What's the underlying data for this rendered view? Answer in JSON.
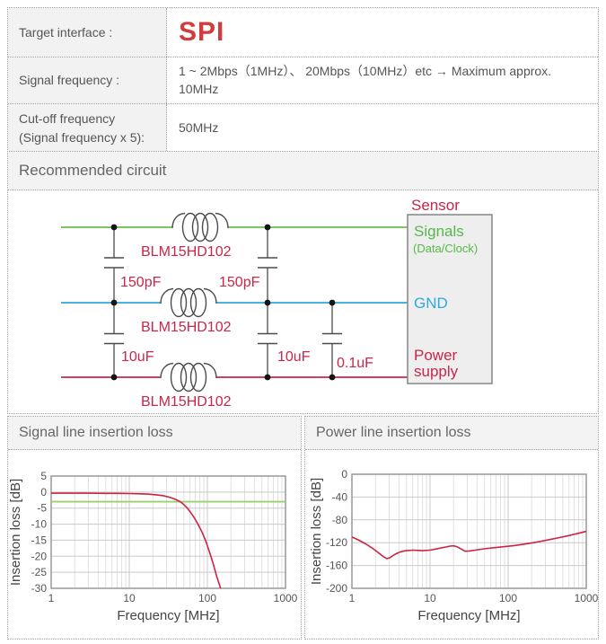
{
  "table": {
    "rows": [
      {
        "label": "Target interface :",
        "value": "SPI"
      },
      {
        "label": "Signal frequency :",
        "value": "1 ~ 2Mbps（1MHz）、 20Mbps（10MHz）etc → Maximum approx. 10MHz"
      },
      {
        "label": "Cut-off frequency (Signal frequency x 5):",
        "value": "50MHz"
      }
    ]
  },
  "panels": {
    "circuit_title": "Recommended circuit",
    "signal_chart_title": "Signal line insertion loss",
    "power_chart_title": "Power line insertion loss"
  },
  "circuit": {
    "ferrite_label": "BLM15HD102",
    "cap_signal": "150pF",
    "cap_power": "10uF",
    "cap_bypass": "0.1uF",
    "sensor_title": "Sensor",
    "port_signals": "Signals",
    "port_signals_sub": "(Data/Clock)",
    "port_gnd": "GND",
    "port_power_line1": "Power",
    "port_power_line2": "supply",
    "colors": {
      "signal_line": "#6abf4b",
      "gnd_line": "#2fa8dc",
      "power_line": "#cb2649",
      "label_red": "#cb2649"
    }
  },
  "chart_data": [
    {
      "type": "line",
      "title": "Signal line insertion loss",
      "xlabel": "Frequency [MHz]",
      "ylabel": "Insertion loss [dB]",
      "xscale": "log",
      "xlim": [
        1,
        1000
      ],
      "ylim": [
        -30,
        5
      ],
      "xticks": [
        1,
        10,
        100,
        1000
      ],
      "yticks": [
        5,
        0,
        -5,
        -10,
        -15,
        -20,
        -25,
        -30
      ],
      "grid": true,
      "legend": "none",
      "series": [
        {
          "name": "-3dB reference",
          "type": "hline",
          "color": "#9ccf6e",
          "y": -3
        },
        {
          "name": "insertion loss",
          "type": "line",
          "color": "#cc2342",
          "x": [
            1,
            1.5,
            2,
            3,
            5,
            7,
            10,
            14,
            18,
            22,
            27,
            32,
            38,
            45,
            50,
            55,
            60,
            67,
            75,
            85,
            95,
            105,
            118,
            132,
            150
          ],
          "y": [
            -0.35,
            -0.35,
            -0.35,
            -0.35,
            -0.4,
            -0.4,
            -0.45,
            -0.55,
            -0.65,
            -0.85,
            -1.1,
            -1.55,
            -2.15,
            -3.0,
            -3.9,
            -4.9,
            -6.1,
            -7.8,
            -9.8,
            -12.4,
            -15.2,
            -18.2,
            -22.2,
            -26.4,
            -30.5
          ]
        }
      ]
    },
    {
      "type": "line",
      "title": "Power line insertion loss",
      "xlabel": "Frequency [MHz]",
      "ylabel": "Insertion loss [dB]",
      "xscale": "log",
      "xlim": [
        1,
        1000
      ],
      "ylim": [
        -200,
        0
      ],
      "xticks": [
        1,
        10,
        100,
        1000
      ],
      "yticks": [
        0,
        -40,
        -80,
        -120,
        -160,
        -200
      ],
      "grid": true,
      "legend": "none",
      "series": [
        {
          "name": "insertion loss",
          "type": "line",
          "color": "#cc2342",
          "x": [
            1,
            1.2,
            1.5,
            1.8,
            2.2,
            2.5,
            2.8,
            3.1,
            3.5,
            4,
            4.5,
            5,
            6,
            7,
            8,
            10,
            12,
            14,
            16,
            18,
            20,
            22,
            25,
            28,
            32,
            38,
            45,
            55,
            70,
            90,
            120,
            160,
            220,
            300,
            420,
            600,
            800,
            1000
          ],
          "y": [
            -110,
            -115,
            -122,
            -129,
            -138,
            -144,
            -148,
            -146,
            -141,
            -137,
            -135,
            -134,
            -133,
            -133.5,
            -134,
            -133,
            -131,
            -129,
            -127.5,
            -126,
            -125.5,
            -127,
            -131,
            -135,
            -134.5,
            -133,
            -131.5,
            -130,
            -128.5,
            -127,
            -125,
            -122.5,
            -119.5,
            -116,
            -112,
            -107.5,
            -103.5,
            -100
          ]
        }
      ]
    }
  ]
}
